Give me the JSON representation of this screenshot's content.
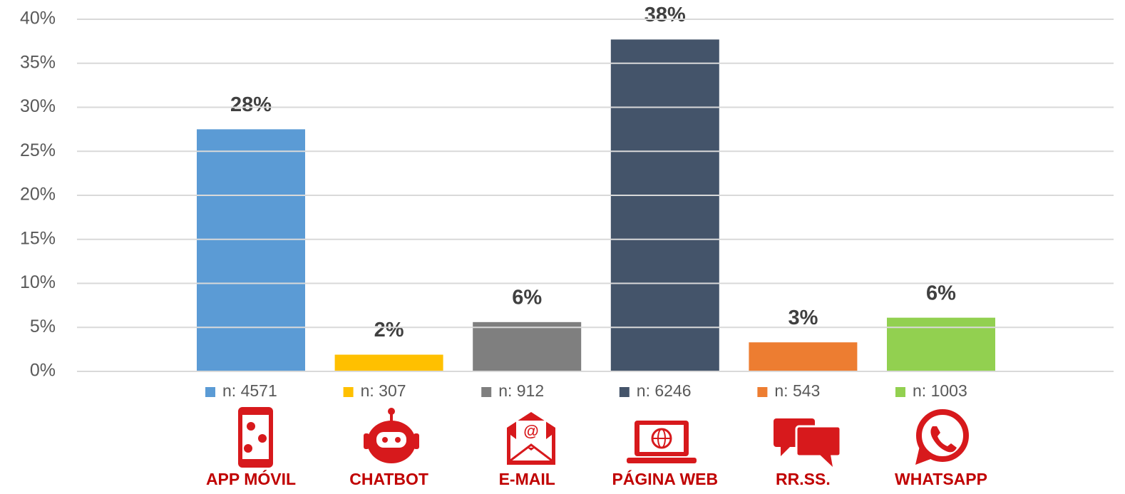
{
  "chart_data": {
    "type": "bar",
    "categories": [
      "APP MÓVIL",
      "CHATBOT",
      "E-MAIL",
      "PÁGINA WEB",
      "RR.SS.",
      "WHATSAPP"
    ],
    "values": [
      27.5,
      1.9,
      5.6,
      37.7,
      3.3,
      6.1
    ],
    "value_labels": [
      "28%",
      "2%",
      "6%",
      "38%",
      "3%",
      "6%"
    ],
    "legend": [
      "n: 4571",
      "n: 307",
      "n: 912",
      "n: 6246",
      "n: 543",
      "n: 1003"
    ],
    "colors": [
      "#5b9bd5",
      "#ffc000",
      "#7f7f7f",
      "#44546a",
      "#ed7d31",
      "#92d050"
    ],
    "ylim": [
      0,
      40
    ],
    "yticks": [
      {
        "value": 0,
        "label": "0%"
      },
      {
        "value": 5,
        "label": "5%"
      },
      {
        "value": 10,
        "label": "10%"
      },
      {
        "value": 15,
        "label": "15%"
      },
      {
        "value": 20,
        "label": "20%"
      },
      {
        "value": 25,
        "label": "25%"
      },
      {
        "value": 30,
        "label": "30%"
      },
      {
        "value": 35,
        "label": "35%"
      },
      {
        "value": 40,
        "label": "40%"
      }
    ],
    "grid": true
  }
}
